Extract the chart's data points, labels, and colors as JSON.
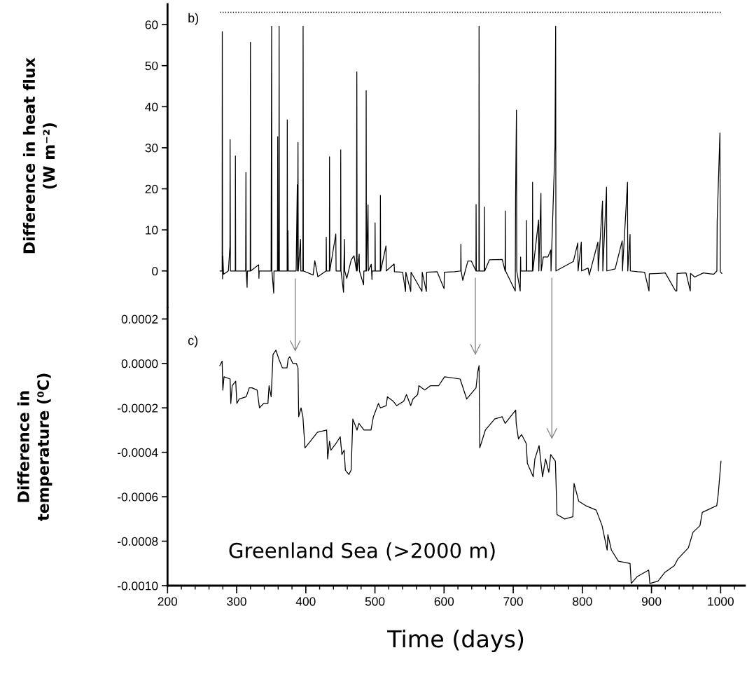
{
  "chart_data": [
    {
      "type": "line",
      "ylabel": "Difference in heat flux\n(W m⁻²)",
      "xlim": [
        200,
        1035
      ],
      "ylim": [
        -9,
        65
      ],
      "yticks": [
        0,
        10,
        20,
        30,
        40,
        50,
        60
      ],
      "tick_labels": "y",
      "annotations": [
        "b)"
      ],
      "ref_lines": [
        {
          "axis": "y",
          "value": 63,
          "line_style": "dotted",
          "color": "#000000"
        }
      ],
      "series": [
        {
          "color": "#000000",
          "x": [
            276,
            279,
            279.2,
            279.6,
            280,
            281,
            288,
            290.3,
            290.5,
            291,
            298,
            298.2,
            298.6,
            313,
            313.4,
            313.8,
            315.1,
            315.5,
            319.6,
            319.9,
            320.3,
            331.8,
            332.2,
            332.6,
            349.8,
            350,
            350.6,
            351,
            353.6,
            354,
            359,
            359.4,
            359.8,
            361,
            361.4,
            361.8,
            373,
            373.2,
            373.6,
            374.2,
            374.6,
            386,
            387.7,
            388,
            388.7,
            389.1,
            392.4,
            392.8,
            395.8,
            396.1,
            396.5,
            410.6,
            413,
            417.4,
            429.4,
            429.6,
            430,
            434.1,
            434.3,
            434.7,
            443.4,
            443.8,
            450.3,
            450.5,
            450.9,
            454.6,
            455,
            455.9,
            456.3,
            459.3,
            465.7,
            469.7,
            473.3,
            473.5,
            473.8,
            474.2,
            477.2,
            477.6,
            483.6,
            484,
            487.1,
            487.3,
            487.7,
            490,
            490.4,
            494.7,
            495.7,
            496,
            500,
            500.2,
            500.6,
            507.7,
            507.9,
            508.3,
            516,
            516.4,
            527.8,
            528.2,
            540,
            544.3,
            544.7,
            551.8,
            552.2,
            568,
            568.4,
            574.4,
            574.8,
            590,
            600,
            600.4,
            615,
            624.1,
            624.3,
            624.7,
            627,
            634.4,
            639.5,
            646.1,
            646.3,
            646.7,
            650.4,
            650.6,
            651,
            658.2,
            658.4,
            658.8,
            665.5,
            684.1,
            688.3,
            688.5,
            688.9,
            703,
            703.4,
            704.7,
            705.1,
            710.1,
            710.7,
            711,
            719,
            719.2,
            719.6,
            727.8,
            728,
            728.4,
            736.7,
            737,
            740.1,
            740.5,
            743.5,
            750.2,
            754.3,
            754.7,
            760.4,
            761.4,
            761.8,
            787,
            793.4,
            793.8,
            798.5,
            798.9,
            808.3,
            810,
            822.5,
            822.9,
            826.9,
            829.2,
            829.6,
            835,
            835.4,
            847.4,
            857.6,
            858,
            865.3,
            865.7,
            869,
            869.4,
            880,
            890,
            896.4,
            896.8,
            910,
            920,
            934.9,
            936.6,
            937,
            950,
            956.1,
            956.5,
            962.5,
            975,
            990,
            994.6,
            995,
            997.6,
            999,
            999.6,
            1001.7
          ],
          "values": [
            0,
            0,
            58.3,
            -1.9,
            3.6,
            -0.8,
            0,
            6,
            32,
            0,
            0,
            28,
            0,
            0,
            24,
            0,
            -4,
            0,
            0,
            55.7,
            0,
            1.5,
            -1.8,
            0,
            0,
            15.4,
            59.6,
            0,
            -5.4,
            0,
            0,
            32.7,
            0,
            0,
            59.6,
            0,
            0,
            36.8,
            0,
            9.8,
            0,
            0,
            21,
            0,
            31.3,
            0,
            7.7,
            0,
            0,
            59.6,
            0,
            -1,
            2.5,
            -1.4,
            0,
            8.2,
            0,
            0,
            27.8,
            0,
            9,
            0,
            0,
            29.5,
            0,
            -5.2,
            0,
            7.7,
            0,
            -1.8,
            2.7,
            3.7,
            0,
            23.6,
            48.5,
            0,
            4.1,
            0,
            -3.4,
            0,
            0,
            43.9,
            0,
            16.1,
            0,
            1.6,
            -2.1,
            0,
            0,
            11.7,
            0,
            0,
            18.4,
            0,
            6.1,
            0,
            1.7,
            -0.2,
            -0.3,
            -5,
            -0.3,
            -5,
            -0.3,
            -5,
            -0.3,
            -5,
            -0.3,
            -0.2,
            -4.3,
            -0.3,
            -0.2,
            0,
            6.5,
            0,
            -2.3,
            2.4,
            2.4,
            0,
            16.2,
            0,
            0,
            59.6,
            0,
            0,
            15.6,
            0,
            2.7,
            2.8,
            0,
            14.6,
            0,
            -4.9,
            18,
            39.2,
            0,
            -4.9,
            3.4,
            0,
            0,
            12.3,
            0,
            0,
            21.6,
            0,
            12.4,
            0,
            18.9,
            0,
            3.4,
            3.4,
            5.1,
            0,
            30.3,
            59.6,
            0,
            2.3,
            6.8,
            0,
            7,
            0,
            0.7,
            -1,
            7,
            0,
            10.7,
            17,
            0,
            20.4,
            0,
            0.5,
            7.3,
            0,
            21.6,
            0,
            8.9,
            0,
            -0.2,
            -0.3,
            -4.9,
            -0.7,
            -0.6,
            -0.5,
            -4.9,
            -4.9,
            -0.6,
            -0.5,
            -4.9,
            -0.6,
            -1.5,
            -0.5,
            -0.8,
            0,
            12.1,
            26.1,
            33.6,
            -0.2,
            -0.6
          ]
        }
      ]
    },
    {
      "type": "line",
      "xlabel": "Time (days)",
      "ylabel": "Difference in\ntemperature (⁰C)",
      "xlim": [
        200,
        1035
      ],
      "xticks": [
        200,
        {
          "value": 220,
          "label": null
        },
        {
          "value": 240,
          "label": null
        },
        {
          "value": 260,
          "label": null
        },
        {
          "value": 280,
          "label": null
        },
        300,
        {
          "value": 320,
          "label": null
        },
        {
          "value": 340,
          "label": null
        },
        {
          "value": 360,
          "label": null
        },
        {
          "value": 380,
          "label": null
        },
        400,
        {
          "value": 420,
          "label": null
        },
        {
          "value": 440,
          "label": null
        },
        {
          "value": 460,
          "label": null
        },
        {
          "value": 480,
          "label": null
        },
        500,
        {
          "value": 520,
          "label": null
        },
        {
          "value": 540,
          "label": null
        },
        {
          "value": 560,
          "label": null
        },
        {
          "value": 580,
          "label": null
        },
        600,
        {
          "value": 620,
          "label": null
        },
        {
          "value": 640,
          "label": null
        },
        {
          "value": 660,
          "label": null
        },
        {
          "value": 680,
          "label": null
        },
        700,
        {
          "value": 720,
          "label": null
        },
        {
          "value": 740,
          "label": null
        },
        {
          "value": 760,
          "label": null
        },
        {
          "value": 780,
          "label": null
        },
        800,
        {
          "value": 820,
          "label": null
        },
        {
          "value": 840,
          "label": null
        },
        {
          "value": 860,
          "label": null
        },
        {
          "value": 880,
          "label": null
        },
        900,
        {
          "value": 920,
          "label": null
        },
        {
          "value": 940,
          "label": null
        },
        {
          "value": 960,
          "label": null
        },
        {
          "value": 980,
          "label": null
        },
        1000,
        {
          "value": 1020,
          "label": null
        }
      ],
      "ylim": [
        -0.001,
        0.00025
      ],
      "yticks": [
        {
          "value": 0.0002,
          "label": "0.0002"
        },
        {
          "value": 0,
          "label": "0.0000"
        },
        {
          "value": -0.0002,
          "label": "-0.0002"
        },
        {
          "value": -0.0004,
          "label": "-0.0004"
        },
        {
          "value": -0.0006,
          "label": "-0.0006"
        },
        {
          "value": -0.0008,
          "label": "-0.0008"
        },
        {
          "value": -0.001,
          "label": "-0.0010"
        }
      ],
      "annotations": [
        "c)",
        "Greenland Sea (>2000 m)"
      ],
      "series": [
        {
          "color": "#000000",
          "x": [
            275.6,
            279,
            280,
            281.7,
            290.5,
            291.5,
            293.5,
            298.6,
            300.3,
            303.7,
            313.8,
            318.2,
            322.2,
            329.6,
            333,
            339.1,
            345.2,
            346.9,
            349.9,
            352.6,
            356.7,
            361,
            366.1,
            372.8,
            374.5,
            376.8,
            381.2,
            386.3,
            388.7,
            389.7,
            393.1,
            395.8,
            398.8,
            406.6,
            416.7,
            430.2,
            431.6,
            434.3,
            436.3,
            443.7,
            449.8,
            452.2,
            455.5,
            457.2,
            462.3,
            465.6,
            468,
            474.1,
            476.8,
            484.2,
            494.3,
            497.7,
            505.1,
            507.9,
            516.3,
            518,
            526.4,
            531.5,
            541.6,
            545.6,
            551.7,
            555.1,
            561.8,
            563.5,
            572,
            580.4,
            592.2,
            600.7,
            623.2,
            632.7,
            646.2,
            648.6,
            650.6,
            651.6,
            659.7,
            673.2,
            684,
            688.4,
            703.6,
            704.3,
            707.6,
            712,
            718.8,
            720.5,
            728.9,
            731.3,
            737.4,
            742.4,
            746.8,
            751.5,
            754.2,
            761,
            763.3,
            774.5,
            786.3,
            788,
            794.7,
            804.8,
            820,
            828.5,
            835.9,
            836.9,
            842,
            852.1,
            869,
            870.7,
            879.1,
            896,
            897.6,
            909.4,
            919.5,
            933,
            938.1,
            953.3,
            960,
            970.1,
            973.5,
            994.4,
            996.5,
            1000.5
          ],
          "values": [
            -1e-05,
            1e-05,
            -0.00012,
            -6e-05,
            -7e-05,
            -0.00018,
            -0.0001,
            -8e-05,
            -0.00018,
            -0.00016,
            -0.00015,
            -0.00011,
            -0.00011,
            -0.00012,
            -0.0002,
            -0.00018,
            -0.00018,
            -0.0001,
            -0.00015,
            4e-05,
            6e-05,
            2e-05,
            -2e-05,
            -2e-05,
            2e-05,
            3e-05,
            0,
            0,
            -2e-05,
            -0.00024,
            -0.0002,
            -0.00024,
            -0.00038,
            -0.00035,
            -0.00031,
            -0.0003,
            -0.00043,
            -0.00035,
            -0.00039,
            -0.00036,
            -0.00033,
            -0.00041,
            -0.00039,
            -0.00048,
            -0.0005,
            -0.00048,
            -0.00025,
            -0.0003,
            -0.00027,
            -0.0003,
            -0.0003,
            -0.00024,
            -0.00018,
            -0.0002,
            -0.00019,
            -0.00015,
            -0.00017,
            -0.00019,
            -0.00017,
            -0.00014,
            -0.00019,
            -0.00016,
            -0.00014,
            -0.0001,
            -0.00012,
            -0.0001,
            -0.0001,
            -6e-05,
            -7e-05,
            -0.00016,
            -0.00011,
            -4e-05,
            -1e-05,
            -0.00038,
            -0.0003,
            -0.00025,
            -0.00024,
            -0.00027,
            -0.00021,
            -0.00027,
            -0.00034,
            -0.00032,
            -0.00036,
            -0.00045,
            -0.00051,
            -0.00043,
            -0.00037,
            -0.00051,
            -0.00043,
            -0.00049,
            -0.00041,
            -0.00044,
            -0.00068,
            -0.0007,
            -0.00069,
            -0.00054,
            -0.00062,
            -0.00064,
            -0.00066,
            -0.00073,
            -0.00084,
            -0.00077,
            -0.00084,
            -0.00089,
            -0.0009,
            -0.00099,
            -0.00096,
            -0.00093,
            -0.00099,
            -0.00098,
            -0.00094,
            -0.00091,
            -0.00088,
            -0.00083,
            -0.00076,
            -0.00073,
            -0.00067,
            -0.00064,
            -0.00059,
            -0.00044
          ]
        }
      ]
    }
  ]
}
